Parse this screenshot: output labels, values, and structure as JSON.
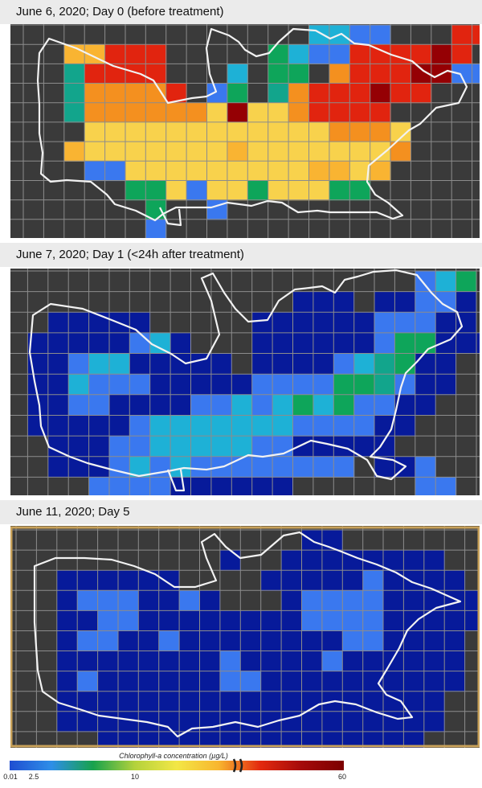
{
  "panels": [
    {
      "label": "June 6, 2020; Day 0 (before treatment)",
      "rows": [
        "..............ccbb...ii.",
        "..ffiii.....dcbbiiiiji..",
        "..eiiii...c.dd.hiiijjbb.",
        "..ehhhhi.bd.ehiiijii....",
        "..ehhhhhhgjgghiiii......",
        "...gggggggggggghhhg.....",
        "..fgggggggfgggggggh.....",
        "...bbgggggggggffgf......",
        ".....ddgbggdgggdd.......",
        "......d..b..............",
        "......b.................",
        "........................"
      ]
    },
    {
      "label": "June 7, 2020; Day 1 (<24h after treatment)",
      "rows": [
        "....................bcd.",
        "..............aaa.aabba.",
        "..aaaaa.....aaaaaabbbaa.",
        ".aaaaabca...aaaaaabddaaa",
        ".aabccaaaaa.aaaabcedaa..",
        ".aacbbbaaaaabbbbddebaa..",
        ".aabbaaaabbcbcdcdbbaa...",
        ".aaaaabcccccccbbbbaa....",
        "..aaabbcccccbbaaaaa.....",
        "..aaabcbcbbbbbbbb.aab...",
        "....bbbbaaaaaa......bb..",
        "..........a......a......"
      ]
    },
    {
      "label": "June 11, 2020; Day 5",
      "rows": [
        "..............aa........",
        "..........a..aaaaaaaa...",
        "..aaaaaa....aaaaabaaaa..",
        "..abbbaaba...abbbbaaaaaa",
        "..aabbaaaaaaaabbbbaaaaa.",
        "..abbaabaaaaaaaabbaaaa..",
        "..aaaaaaaabaaaabaaaaaa..",
        "..abaaaaaabbaaaaaaaaaa..",
        "..aaaaaaaaaaaaaaaaaaa...",
        "..aaaaaaaaaaaaaaaaaaa...",
        "....aaaaaaaaaaaaaaaa....",
        ".........a.............."
      ]
    }
  ],
  "palette": {
    "a": "#071a9a",
    "b": "#3a78ef",
    "c": "#1eb1d6",
    "d": "#0ea55a",
    "e": "#12a58c",
    "f": "#f9b432",
    "g": "#f8d24c",
    "h": "#f4901f",
    "i": "#e1240f",
    "j": "#950004"
  },
  "legend": {
    "title": "Chlorophyll-a concentration (µg/L)",
    "ticks": [
      "0.01",
      "2.5",
      "10",
      "60"
    ],
    "stops": [
      "#1f4ed1",
      "#2e8ee8",
      "#18a24c",
      "#b4d23c",
      "#f3e746",
      "#f8b62f",
      "#e3290f",
      "#a40a0a",
      "#7c0000"
    ]
  }
}
